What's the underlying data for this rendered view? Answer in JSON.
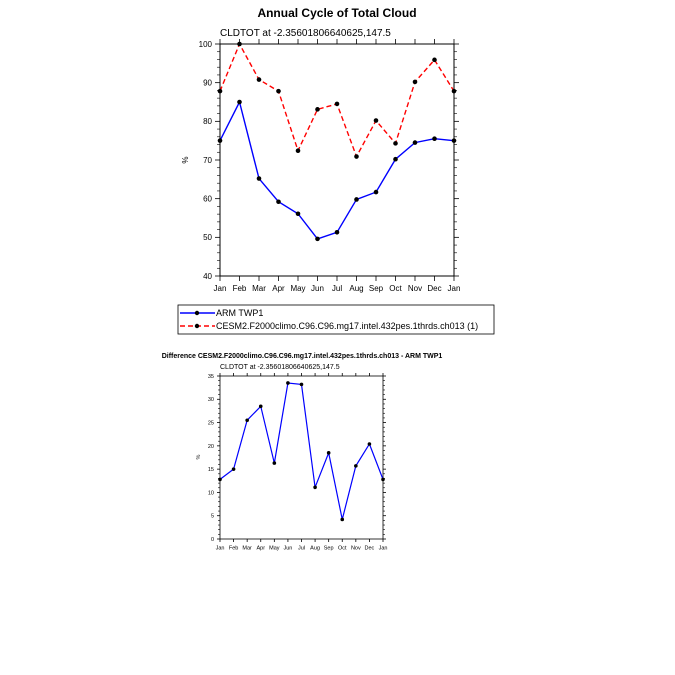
{
  "chart_data": [
    {
      "type": "line",
      "title": "Annual Cycle of Total Cloud",
      "subtitle": "CLDTOT at -2.35601806640625,147.5",
      "xlabel": "",
      "ylabel": "%",
      "categories": [
        "Jan",
        "Feb",
        "Mar",
        "Apr",
        "May",
        "Jun",
        "Jul",
        "Aug",
        "Sep",
        "Oct",
        "Nov",
        "Dec",
        "Jan"
      ],
      "ylim": [
        40,
        100
      ],
      "yticks": [
        40,
        50,
        60,
        70,
        80,
        90,
        100
      ],
      "series": [
        {
          "name": "ARM TWP1",
          "color": "#0000ff",
          "dash": "solid",
          "values": [
            75.0,
            85.0,
            65.2,
            59.2,
            56.1,
            49.6,
            51.3,
            59.8,
            61.7,
            70.2,
            74.5,
            75.5,
            75.0
          ]
        },
        {
          "name": "CESM2.F2000climo.C96.C96.mg17.intel.432pes.1thrds.ch013 (1)",
          "color": "#ff0000",
          "dash": "dashed",
          "values": [
            87.8,
            100.0,
            90.8,
            87.8,
            72.4,
            83.1,
            84.5,
            70.9,
            80.2,
            74.3,
            90.2,
            95.9,
            87.8
          ]
        }
      ],
      "legend": "below"
    },
    {
      "type": "line",
      "title": "Difference CESM2.F2000climo.C96.C96.mg17.intel.432pes.1thrds.ch013 - ARM TWP1",
      "subtitle": "CLDTOT at -2.35601806640625,147.5",
      "xlabel": "",
      "ylabel": "%",
      "categories": [
        "Jan",
        "Feb",
        "Mar",
        "Apr",
        "May",
        "Jun",
        "Jul",
        "Aug",
        "Sep",
        "Oct",
        "Nov",
        "Dec",
        "Jan"
      ],
      "ylim": [
        0,
        35
      ],
      "yticks": [
        0,
        5,
        10,
        15,
        20,
        25,
        30,
        35
      ],
      "series": [
        {
          "name": "Difference",
          "color": "#0000ff",
          "dash": "solid",
          "values": [
            12.8,
            15.0,
            25.5,
            28.5,
            16.3,
            33.5,
            33.2,
            11.1,
            18.5,
            4.2,
            15.7,
            20.4,
            12.8
          ]
        }
      ]
    }
  ]
}
